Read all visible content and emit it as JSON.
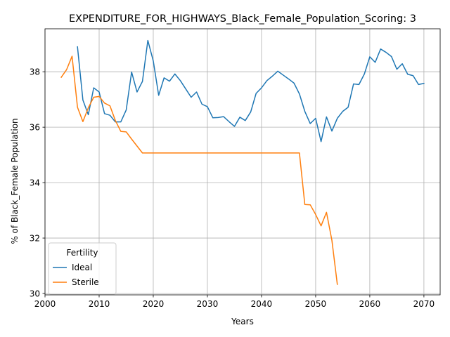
{
  "chart_data": {
    "type": "line",
    "title": "EXPENDITURE_FOR_HIGHWAYS_Black_Female_Population_Scoring: 3",
    "xlabel": "Years",
    "ylabel": "% of Black_Female Population",
    "xlim": [
      2000,
      2073
    ],
    "ylim": [
      29.95,
      39.55
    ],
    "xticks": [
      2000,
      2010,
      2020,
      2030,
      2040,
      2050,
      2060,
      2070
    ],
    "yticks": [
      30,
      32,
      34,
      36,
      38
    ],
    "grid": true,
    "legend": {
      "title": "Fertility",
      "placement": "lower-left"
    },
    "series": [
      {
        "name": "Ideal",
        "color": "#1f77b4",
        "x": [
          2006,
          2007,
          2008,
          2009,
          2010,
          2011,
          2012,
          2013,
          2014,
          2015,
          2016,
          2017,
          2018,
          2019,
          2020,
          2021,
          2022,
          2023,
          2024,
          2025,
          2026,
          2027,
          2028,
          2029,
          2030,
          2031,
          2032,
          2033,
          2034,
          2035,
          2036,
          2037,
          2038,
          2039,
          2040,
          2041,
          2042,
          2043,
          2044,
          2045,
          2046,
          2047,
          2048,
          2049,
          2050,
          2051,
          2052,
          2053,
          2054,
          2055,
          2056,
          2057,
          2058,
          2059,
          2060,
          2061,
          2062,
          2063,
          2064,
          2065,
          2066,
          2067,
          2068,
          2069,
          2070
        ],
        "y": [
          38.9,
          36.98,
          36.45,
          37.42,
          37.27,
          36.49,
          36.43,
          36.19,
          36.19,
          36.62,
          37.99,
          37.27,
          37.65,
          39.13,
          38.39,
          37.15,
          37.78,
          37.66,
          37.92,
          37.68,
          37.38,
          37.08,
          37.27,
          36.83,
          36.74,
          36.34,
          36.35,
          36.38,
          36.2,
          36.03,
          36.36,
          36.24,
          36.55,
          37.22,
          37.42,
          37.68,
          37.84,
          38.02,
          37.88,
          37.74,
          37.59,
          37.2,
          36.57,
          36.13,
          36.32,
          35.48,
          36.37,
          35.86,
          36.32,
          36.57,
          36.72,
          37.56,
          37.54,
          37.92,
          38.54,
          38.34,
          38.82,
          38.7,
          38.55,
          38.09,
          38.29,
          37.91,
          37.86,
          37.54,
          37.58
        ]
      },
      {
        "name": "Sterile",
        "color": "#ff7f0e",
        "x": [
          2003,
          2004,
          2005,
          2006,
          2007,
          2008,
          2009,
          2010,
          2011,
          2012,
          2013,
          2014,
          2015,
          2016,
          2017,
          2018,
          2019,
          2020,
          2025,
          2030,
          2035,
          2040,
          2045,
          2046,
          2047,
          2048,
          2049,
          2050,
          2051,
          2052,
          2053,
          2054
        ],
        "y": [
          37.8,
          38.08,
          38.56,
          36.72,
          36.2,
          36.7,
          37.08,
          37.11,
          36.87,
          36.77,
          36.24,
          35.85,
          35.83,
          35.57,
          35.32,
          35.07,
          35.07,
          35.07,
          35.07,
          35.07,
          35.07,
          35.07,
          35.07,
          35.07,
          35.07,
          33.21,
          33.2,
          32.85,
          32.44,
          32.93,
          31.92,
          30.33
        ]
      }
    ]
  }
}
